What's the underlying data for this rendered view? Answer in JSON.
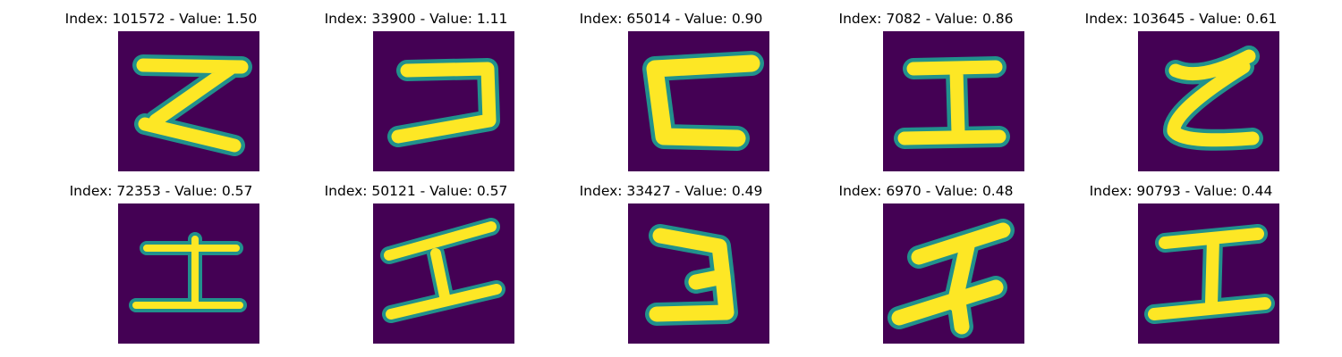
{
  "figure": {
    "background_color": "#ffffff",
    "colormap": "viridis",
    "colors": {
      "low": "#440154",
      "mid": "#21918c",
      "high": "#fde725"
    },
    "panels": [
      {
        "title": "Index: 101572 - Value: 1.50",
        "glyph": "z-shape-icon"
      },
      {
        "title": "Index: 33900 - Value: 1.11",
        "glyph": "reversed-c-shape-icon"
      },
      {
        "title": "Index: 65014 - Value: 0.90",
        "glyph": "c-shape-icon"
      },
      {
        "title": "Index: 7082 - Value: 0.86",
        "glyph": "i-beam-shape-icon"
      },
      {
        "title": "Index: 103645 - Value: 0.61",
        "glyph": "curved-z-shape-icon"
      },
      {
        "title": "Index: 72353 - Value: 0.57",
        "glyph": "i-beam-shape-icon"
      },
      {
        "title": "Index: 50121 - Value: 0.57",
        "glyph": "slanted-i-shape-icon"
      },
      {
        "title": "Index: 33427 - Value: 0.49",
        "glyph": "three-shape-icon"
      },
      {
        "title": "Index: 6970 - Value: 0.48",
        "glyph": "slanted-i-shape-icon"
      },
      {
        "title": "Index: 90793 - Value: 0.44",
        "glyph": "i-beam-shape-icon"
      }
    ]
  }
}
